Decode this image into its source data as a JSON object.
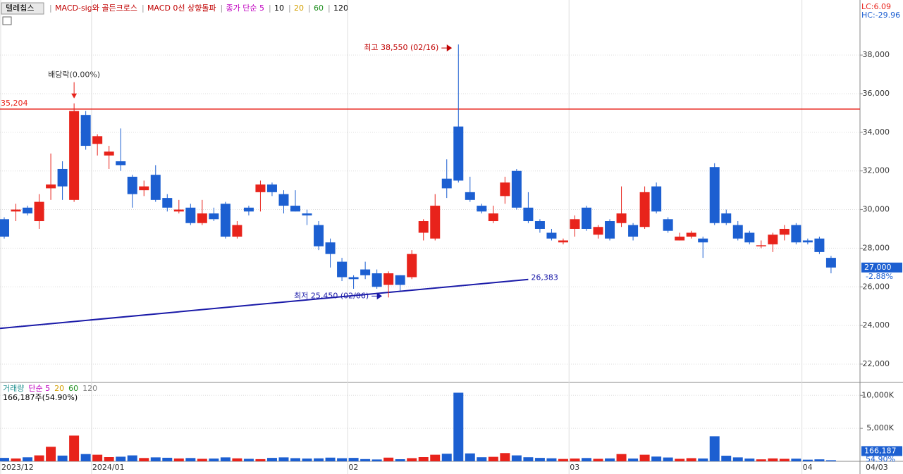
{
  "chart_data": {
    "type": "candlestick",
    "title": "텔레칩스",
    "legend": [
      {
        "label": "MACD-sig와 골든크로스",
        "color": "#c00000"
      },
      {
        "label": "MACD 0선 상향돌파",
        "color": "#c00000"
      },
      {
        "label": "종가 단순 5",
        "color": "#c000c0"
      },
      {
        "label": "10",
        "color": "#000000"
      },
      {
        "label": "20",
        "color": "#d4a000"
      },
      {
        "label": "60",
        "color": "#209020"
      },
      {
        "label": "120",
        "color": "#000000"
      }
    ],
    "status": [
      {
        "label": "LC:6.09",
        "color": "#e8231b"
      },
      {
        "label": "HC:-29.96",
        "color": "#1c5fd1"
      }
    ],
    "up_color": "#e8231b",
    "down_color": "#1c5fd1",
    "categories": [
      "2023/12",
      null,
      null,
      null,
      null,
      null,
      null,
      null,
      "2024/01",
      null,
      null,
      null,
      null,
      null,
      null,
      null,
      null,
      null,
      null,
      null,
      null,
      null,
      null,
      null,
      null,
      null,
      null,
      null,
      null,
      null,
      "02",
      null,
      null,
      null,
      null,
      null,
      null,
      null,
      null,
      null,
      null,
      null,
      null,
      null,
      null,
      null,
      null,
      null,
      null,
      "03",
      null,
      null,
      null,
      null,
      null,
      null,
      null,
      null,
      null,
      null,
      null,
      null,
      null,
      null,
      null,
      null,
      null,
      null,
      null,
      "04",
      null,
      null
    ],
    "last_date": "04/03",
    "open": [
      29500,
      29900,
      30100,
      29400,
      31100,
      32100,
      30500,
      34900,
      33400,
      32800,
      32500,
      31700,
      31000,
      31800,
      30600,
      29900,
      30100,
      29300,
      29800,
      30300,
      28600,
      30100,
      30900,
      31300,
      30800,
      30200,
      29800,
      29200,
      28300,
      27300,
      26500,
      26900,
      26700,
      26100,
      26600,
      26500,
      28800,
      28500,
      31600,
      34300,
      30900,
      30200,
      29400,
      30700,
      32000,
      30100,
      29400,
      28800,
      28300,
      29000,
      30100,
      28700,
      29400,
      29300,
      29200,
      29100,
      31200,
      29500,
      28400,
      28600,
      28500,
      32200,
      29800,
      29200,
      28800,
      28100,
      28200,
      28700,
      29200,
      28400,
      28500,
      27500
    ],
    "high": [
      29600,
      30300,
      30200,
      30800,
      32900,
      32500,
      35500,
      35100,
      33900,
      33300,
      34200,
      31800,
      31500,
      32300,
      30800,
      30500,
      30300,
      30500,
      30100,
      30400,
      29400,
      30200,
      31500,
      31400,
      31000,
      31000,
      30000,
      29400,
      28500,
      27500,
      26600,
      27300,
      26900,
      26800,
      26600,
      27900,
      29500,
      30800,
      32600,
      38550,
      31700,
      30300,
      30200,
      31700,
      32100,
      30900,
      29500,
      29000,
      28500,
      29700,
      30200,
      29200,
      29500,
      31200,
      29300,
      31200,
      31400,
      29600,
      28800,
      28900,
      28600,
      32400,
      30000,
      29400,
      28900,
      28400,
      28800,
      29200,
      29300,
      28500,
      28600,
      27600
    ],
    "low": [
      28500,
      29400,
      29700,
      29000,
      30500,
      30500,
      30400,
      33100,
      32800,
      32100,
      32000,
      30100,
      30700,
      30400,
      29900,
      29800,
      29200,
      29200,
      29400,
      28500,
      28500,
      29700,
      29900,
      30700,
      29800,
      29900,
      29200,
      27900,
      27000,
      26300,
      25900,
      26400,
      25900,
      25450,
      25800,
      26400,
      28400,
      28400,
      30600,
      31400,
      30400,
      29800,
      29300,
      30300,
      30000,
      29300,
      28800,
      28400,
      28200,
      28600,
      28900,
      28500,
      28400,
      29100,
      28400,
      29000,
      29800,
      28800,
      28400,
      28500,
      27500,
      29200,
      29200,
      28400,
      28200,
      28000,
      27800,
      28400,
      28200,
      28200,
      27700,
      26700
    ],
    "close": [
      28600,
      30000,
      29800,
      30400,
      31300,
      31200,
      35100,
      33300,
      33800,
      33000,
      32300,
      30800,
      31200,
      30500,
      30100,
      30000,
      29300,
      29800,
      29500,
      28600,
      29200,
      29900,
      31300,
      30900,
      30200,
      29900,
      29700,
      28100,
      27700,
      26500,
      26400,
      26600,
      26000,
      26700,
      26100,
      27700,
      29400,
      30200,
      31100,
      31500,
      30500,
      29900,
      29800,
      31400,
      30100,
      29400,
      29000,
      28500,
      28400,
      29500,
      29000,
      29100,
      28500,
      29800,
      28600,
      30900,
      29900,
      28900,
      28600,
      28800,
      28300,
      29300,
      29300,
      28500,
      28300,
      28150,
      28700,
      29000,
      28300,
      28300,
      27800,
      27000
    ],
    "ylim": [
      21050,
      40850
    ],
    "yticks": [
      {
        "value": 22000,
        "label": "22,000"
      },
      {
        "value": 24000,
        "label": "24,000"
      },
      {
        "value": 26000,
        "label": "26,000"
      },
      {
        "value": 28000,
        "label": "28,000"
      },
      {
        "value": 30000,
        "label": "30,000"
      },
      {
        "value": 32000,
        "label": "32,000"
      },
      {
        "value": 34000,
        "label": "34,000"
      },
      {
        "value": 36000,
        "label": "36,000"
      },
      {
        "value": 38000,
        "label": "38,000"
      }
    ],
    "hline": {
      "value": 35204,
      "label": "35,204",
      "color": "#e8231b"
    },
    "trendline": {
      "start": 23850,
      "end": 26383,
      "label": "26,383",
      "color": "#1a1aa8"
    },
    "dividend": {
      "label": "배당락(0.00%)"
    },
    "high_label": "최고 38,550 (02/16)",
    "low_label": "최저 25,450 (02/06)",
    "current": {
      "value": 27000,
      "label": "27,000",
      "change": "-2.88%"
    },
    "volume": {
      "legend": [
        {
          "label": "거래량",
          "color": "#209090"
        },
        {
          "label": "단순 5",
          "color": "#c000c0"
        },
        {
          "label": "20",
          "color": "#d4a000"
        },
        {
          "label": "60",
          "color": "#209020"
        },
        {
          "label": "120",
          "color": "#808080"
        }
      ],
      "info": "166,187주(54.90%)",
      "values": [
        520000,
        430000,
        610000,
        900000,
        2200000,
        870000,
        3900000,
        1100000,
        1000000,
        640000,
        700000,
        900000,
        500000,
        600000,
        540000,
        430000,
        500000,
        380000,
        420000,
        600000,
        450000,
        380000,
        330000,
        520000,
        600000,
        480000,
        420000,
        450000,
        560000,
        470000,
        520000,
        340000,
        280000,
        560000,
        320000,
        480000,
        640000,
        1000000,
        1150000,
        10400000,
        1200000,
        620000,
        680000,
        1250000,
        900000,
        620000,
        520000,
        460000,
        360000,
        420000,
        500000,
        380000,
        440000,
        1100000,
        420000,
        1000000,
        720000,
        580000,
        380000,
        480000,
        430000,
        3800000,
        850000,
        600000,
        420000,
        300000,
        440000,
        380000,
        400000,
        250000,
        300000,
        166187
      ],
      "last_label": "166,187",
      "last_ratio": "54.90%",
      "ylim": [
        0,
        11740000
      ],
      "yticks": [
        {
          "value": 5000000,
          "label": "5,000K"
        },
        {
          "value": 10000000,
          "label": "10,000K"
        }
      ]
    }
  }
}
